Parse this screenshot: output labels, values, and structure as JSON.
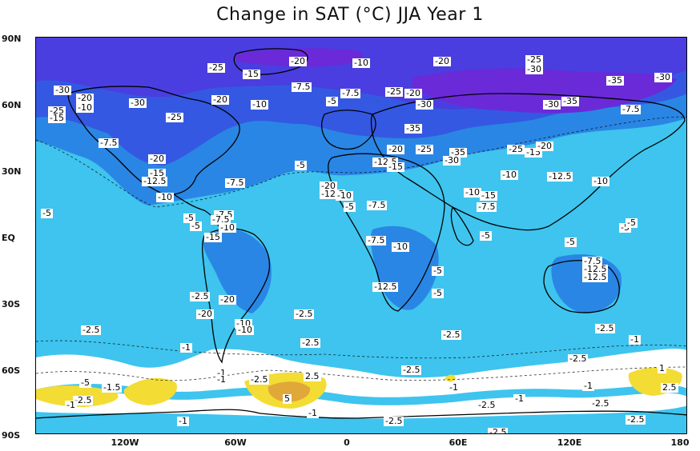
{
  "title": "Change in SAT (°C) JJA Year 1",
  "lat_labels": [
    "90N",
    "60N",
    "30N",
    "EQ",
    "30S",
    "60S",
    "90S"
  ],
  "lon_labels": [
    "120W",
    "60W",
    "0",
    "60E",
    "120E",
    "180"
  ],
  "colors": {
    "ocean_light": "#3ec4ee",
    "cold_mid": "#2a86e4",
    "cold_deep": "#3558e2",
    "cold_deeper": "#4a3ee0",
    "cold_purple": "#6a2ad8",
    "neutral": "#ffffff",
    "warm_yellow": "#f3dc34",
    "warm_core": "#e0a838"
  },
  "contour_labels": [
    "-25",
    "-20",
    "-15",
    "-10",
    "-7.5",
    "-5",
    "-2.5",
    "-1",
    "1",
    "1.5",
    "2.5",
    "5",
    "-30",
    "-35",
    "-12.5"
  ],
  "labels": {
    "l01": "-20",
    "l02": "-25",
    "l03": "-15",
    "l04": "-10",
    "l05": "-20",
    "l06": "-25",
    "l07": "-30",
    "l08": "-35",
    "l09": "-30",
    "l10": "-30",
    "l11": "-20",
    "l12": "-10",
    "l13": "-25",
    "l14": "-15",
    "l15": "-30",
    "l16": "-25",
    "l17": "-20",
    "l18": "-10",
    "l19": "-7.5",
    "l20": "-5",
    "l21": "-7.5",
    "l22": "-25",
    "l23": "-20",
    "l24": "-30",
    "l25": "-30",
    "l26": "-35",
    "l27": "-7.5",
    "l28": "-35",
    "l29": "-7.5",
    "l30": "-20",
    "l31": "-15",
    "l32": "-12.5",
    "l33": "-10",
    "l34": "-7.5",
    "l35": "-5",
    "l36": "-20",
    "l37": "-12.5",
    "l38": "-15",
    "l39": "-25",
    "l40": "-35",
    "l41": "-30",
    "l42": "-25",
    "l43": "-15",
    "l44": "-20",
    "l45": "-10",
    "l46": "-12.5",
    "l47": "-10",
    "l48": "-20",
    "l49": "-12.5",
    "l50": "-10",
    "l51": "-15",
    "l52": "-7.5",
    "l53": "-7.5",
    "l54": "-5",
    "l55": "-5",
    "l56": "-7.5",
    "l57": "-10",
    "l58": "-15",
    "l59": "-5",
    "l60": "-10",
    "l61": "-5",
    "l62": "-7.5",
    "l63": "-10",
    "l64": "-5",
    "l65": "-5",
    "l66": "-12.5",
    "l67": "-5",
    "l68": "-5",
    "l69": "-7.5",
    "l70": "-12.5",
    "l71": "-20",
    "l72": "-10",
    "l73": "-2.5",
    "l74": "-2.5",
    "l75": "-2.5",
    "l76": "-2.5",
    "l77": "-2.5",
    "l78": "-2.5",
    "l79": "-1",
    "l80": "-5",
    "l81": "-1.5",
    "l82": "-2.5",
    "l83": "-1",
    "l84": "-1",
    "l85": "-2.5",
    "l86": "2.5",
    "l87": "5",
    "l88": "-1",
    "l89": "-2.5",
    "l90": "-1",
    "l91": "-2.5",
    "l92": "-1",
    "l93": "-2.5",
    "l94": "-2.5",
    "l95": "-1",
    "l96": "1",
    "l97": "2.5",
    "l98": "-2.5",
    "l99": "-1",
    "l100": "-2.5",
    "l101": "-5",
    "l102": "-1",
    "l103": "-7.5",
    "l104": "-10",
    "l105": "-5",
    "l106": "-1",
    "l107": "-2.5",
    "l108": "-12.5",
    "l109": "-20"
  }
}
